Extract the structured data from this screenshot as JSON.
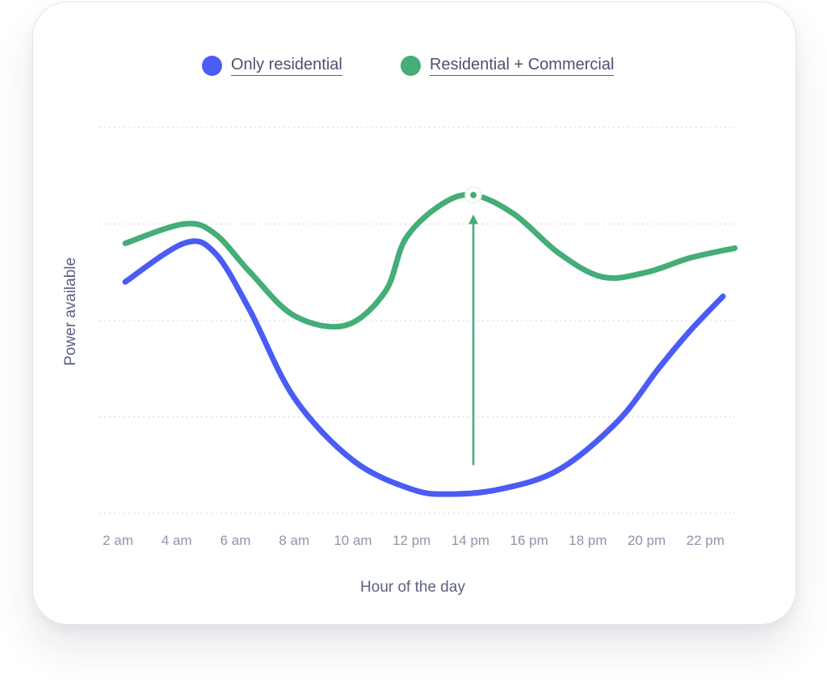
{
  "chart_data": {
    "type": "line",
    "xlabel": "Hour of the day",
    "ylabel": "Power available",
    "x_ticks": [
      "2 am",
      "4 am",
      "6 am",
      "8 am",
      "10 am",
      "12 pm",
      "14 pm",
      "16 pm",
      "18 pm",
      "20 pm",
      "22 pm"
    ],
    "ylim": [
      0,
      4
    ],
    "grid": true,
    "legend_position": "top",
    "series": [
      {
        "name": "Only residential",
        "color": "#4a5cf4",
        "points": [
          [
            2.25,
            2.4
          ],
          [
            4.25,
            2.8
          ],
          [
            5.3,
            2.7
          ],
          [
            6.5,
            2.1
          ],
          [
            8,
            1.2
          ],
          [
            10,
            0.55
          ],
          [
            12,
            0.25
          ],
          [
            13.3,
            0.2
          ],
          [
            15,
            0.25
          ],
          [
            17,
            0.45
          ],
          [
            19,
            0.95
          ],
          [
            20.4,
            1.5
          ],
          [
            21.5,
            1.9
          ],
          [
            22.6,
            2.25
          ]
        ]
      },
      {
        "name": "Residential + Commercial",
        "color": "#45ad77",
        "points": [
          [
            2.25,
            2.8
          ],
          [
            4.25,
            3.0
          ],
          [
            5.3,
            2.9
          ],
          [
            6.5,
            2.5
          ],
          [
            8,
            2.05
          ],
          [
            9.75,
            1.95
          ],
          [
            11.1,
            2.3
          ],
          [
            11.8,
            2.85
          ],
          [
            13,
            3.2
          ],
          [
            14.1,
            3.3
          ],
          [
            15.5,
            3.1
          ],
          [
            17,
            2.7
          ],
          [
            18.5,
            2.45
          ],
          [
            20,
            2.5
          ],
          [
            21.5,
            2.65
          ],
          [
            23,
            2.75
          ]
        ]
      }
    ],
    "annotations": [
      {
        "type": "arrow",
        "series": "Residential + Commercial",
        "x": 14.1,
        "from_y": 0.5,
        "to_y": 3.3
      }
    ]
  }
}
